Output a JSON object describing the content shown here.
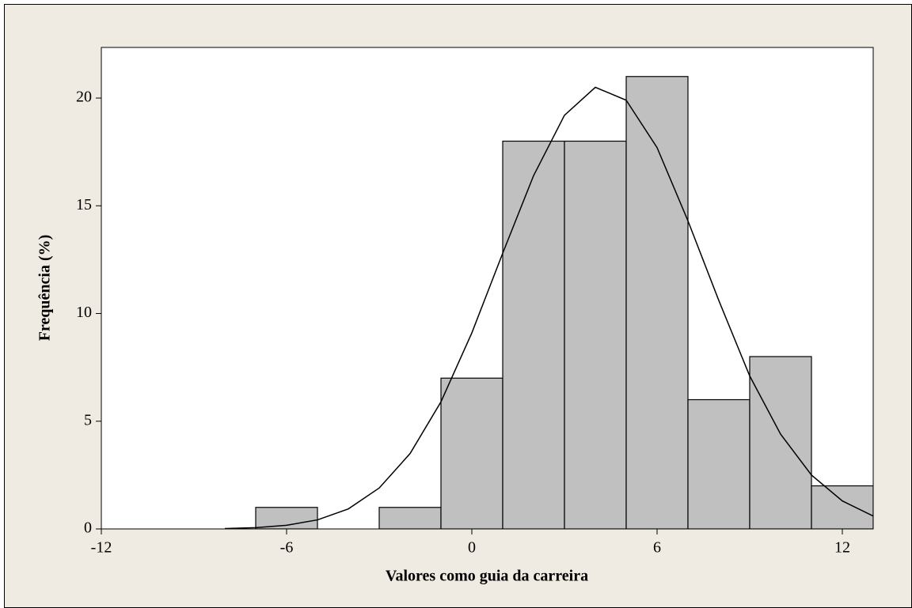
{
  "chart_data": {
    "type": "histogram",
    "xlabel": "Valores como guia da carreira",
    "ylabel": "Frequência (%)",
    "bins": [
      -7,
      -5,
      -3,
      -1,
      1,
      3,
      5,
      7,
      9,
      11,
      13
    ],
    "values": [
      1,
      0,
      1,
      7,
      18,
      18,
      21,
      6,
      8,
      2
    ],
    "color": "#c0c0c0",
    "curve": {
      "x": [
        -8,
        -7,
        -6,
        -5,
        -4,
        -3,
        -2,
        -1,
        0,
        1,
        2,
        3,
        4,
        5,
        6,
        7,
        8,
        9,
        10,
        11,
        12,
        13
      ],
      "values": [
        0.02,
        0.06,
        0.17,
        0.42,
        0.93,
        1.9,
        3.5,
        5.9,
        9.1,
        12.8,
        16.4,
        19.2,
        20.5,
        19.9,
        17.7,
        14.3,
        10.6,
        7.1,
        4.4,
        2.5,
        1.3,
        0.6
      ],
      "color": "#000000"
    },
    "xlim": [
      -12,
      13
    ],
    "ylim": [
      0,
      22.35
    ],
    "xticks": [
      -12,
      -6,
      0,
      6,
      12
    ],
    "yticks": [
      0,
      5,
      10,
      15,
      20
    ]
  }
}
